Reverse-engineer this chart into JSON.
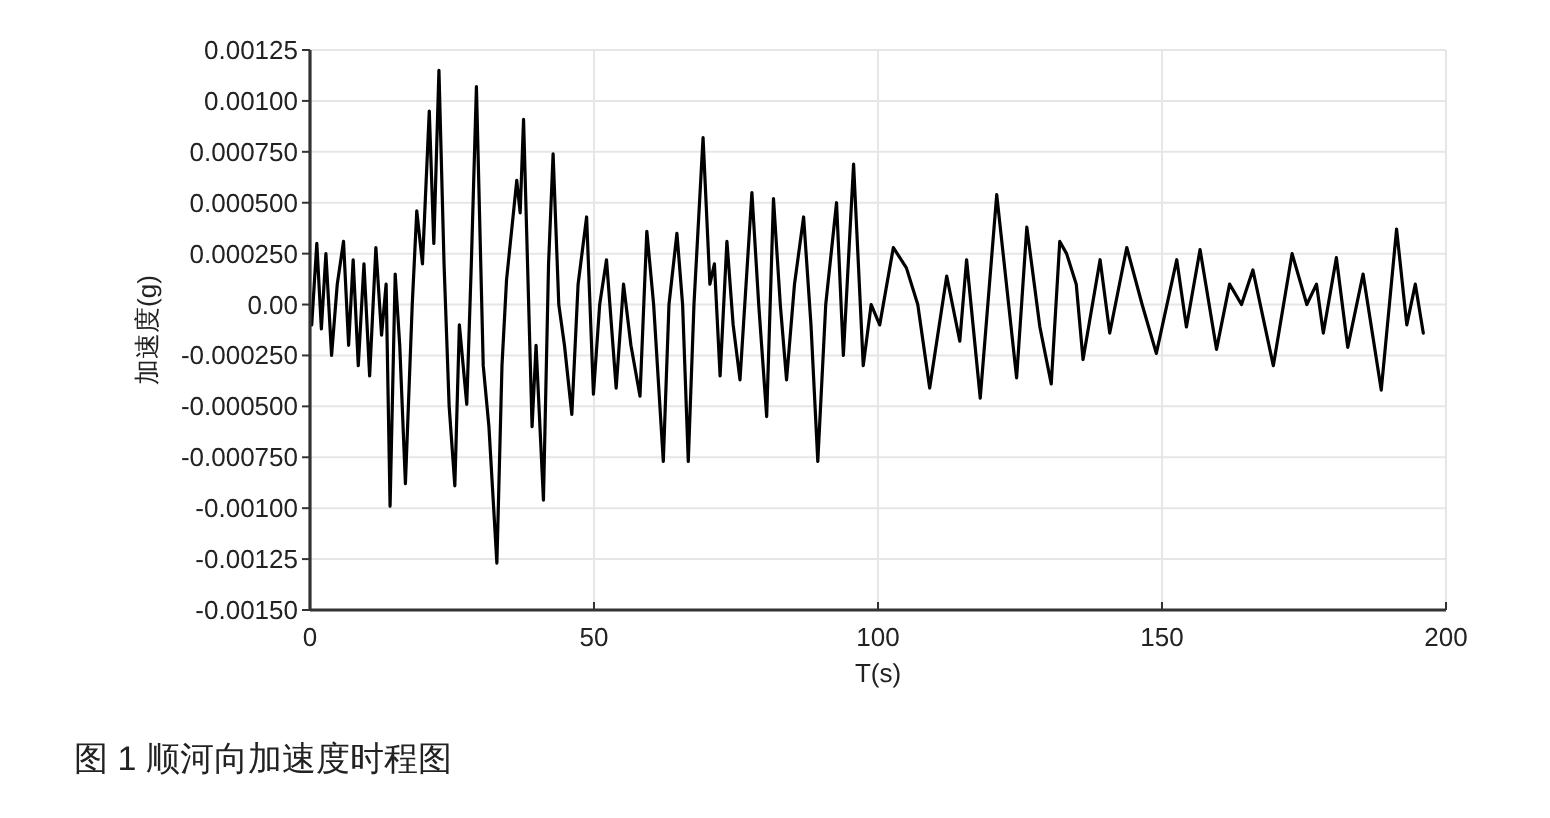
{
  "chart_data": {
    "type": "line",
    "xlabel": "T(s)",
    "ylabel": "加速度(g)",
    "annotations": [
      "图 1 顺河向加速度时程图"
    ],
    "x": [
      0.3,
      1.2,
      2.0,
      2.8,
      3.8,
      4.8,
      5.9,
      6.8,
      7.6,
      8.5,
      9.5,
      10.5,
      11.6,
      12.6,
      13.4,
      14.1,
      15.0,
      15.8,
      16.8,
      18.0,
      18.8,
      19.8,
      21.0,
      21.8,
      22.7,
      23.6,
      24.5,
      25.5,
      26.3,
      27.6,
      28.4,
      29.3,
      30.5,
      31.5,
      32.9,
      33.8,
      34.6,
      36.4,
      37.0,
      37.6,
      38.3,
      39.1,
      39.8,
      41.1,
      42.0,
      42.8,
      43.8,
      44.8,
      46.1,
      47.2,
      48.7,
      49.9,
      51.0,
      52.2,
      53.9,
      55.2,
      56.5,
      58.1,
      59.3,
      60.5,
      62.2,
      63.2,
      64.6,
      65.6,
      66.6,
      67.6,
      69.2,
      70.4,
      71.2,
      72.2,
      73.4,
      74.5,
      75.7,
      77.8,
      79.0,
      80.4,
      81.6,
      82.8,
      83.9,
      85.3,
      86.9,
      88.2,
      89.4,
      90.8,
      92.7,
      93.9,
      95.7,
      97.4,
      98.8,
      100.3,
      102.7,
      105.0,
      107.0,
      109.1,
      112.1,
      114.4,
      115.6,
      118.0,
      120.9,
      124.4,
      126.2,
      128.5,
      130.5,
      132.0,
      133.2,
      134.9,
      136.1,
      139.1,
      140.8,
      143.8,
      146.5,
      149.0,
      152.6,
      154.3,
      156.7,
      159.6,
      161.9,
      164.0,
      166.0,
      169.6,
      172.9,
      175.5,
      177.2,
      178.4,
      180.7,
      182.7,
      185.4,
      188.6,
      191.3,
      193.1,
      194.6,
      196.0
    ],
    "series": [
      {
        "color": "#000000",
        "values": [
          -0.0001,
          0.0003,
          -0.00012,
          0.00025,
          -0.00025,
          0.0001,
          0.00031,
          -0.0002,
          0.00022,
          -0.0003,
          0.0002,
          -0.00035,
          0.00028,
          -0.00015,
          0.0001,
          -0.00099,
          0.00015,
          -0.0002,
          -0.00088,
          0.0,
          0.00046,
          0.0002,
          0.00095,
          0.0003,
          0.00115,
          0.0002,
          -0.0005,
          -0.00089,
          -0.0001,
          -0.00049,
          0.0002,
          0.00107,
          -0.0003,
          -0.0006,
          -0.00127,
          -0.0003,
          0.00012,
          0.00061,
          0.00045,
          0.00091,
          0.0002,
          -0.0006,
          -0.0002,
          -0.00096,
          0.0002,
          0.00074,
          0.0,
          -0.0002,
          -0.00054,
          0.0001,
          0.00043,
          -0.00044,
          0.0,
          0.00022,
          -0.00041,
          0.0001,
          -0.0002,
          -0.00045,
          0.00036,
          0.0,
          -0.00077,
          0.0,
          0.00035,
          0.0,
          -0.00077,
          0.0,
          0.00082,
          0.0001,
          0.0002,
          -0.00035,
          0.00031,
          -0.0001,
          -0.00037,
          0.00055,
          0.0,
          -0.00055,
          0.00052,
          0.0,
          -0.00037,
          0.0001,
          0.00043,
          -0.0001,
          -0.00077,
          0.0,
          0.0005,
          -0.00025,
          0.00069,
          -0.0003,
          0.0,
          -0.0001,
          0.00028,
          0.00018,
          0.0,
          -0.00041,
          0.00014,
          -0.00018,
          0.00022,
          -0.00046,
          0.00054,
          -0.00036,
          0.00038,
          -0.00011,
          -0.00039,
          0.00031,
          0.00025,
          0.0001,
          -0.00027,
          0.00022,
          -0.00014,
          0.00028,
          0.0,
          -0.00024,
          0.00022,
          -0.00011,
          0.00027,
          -0.00022,
          0.0001,
          0.0,
          0.00017,
          -0.0003,
          0.00025,
          0.0,
          0.0001,
          -0.00014,
          0.00023,
          -0.00021,
          0.00015,
          -0.00042,
          0.00037,
          -0.0001,
          0.0001,
          -0.00014
        ]
      }
    ],
    "xlim": [
      0,
      200
    ],
    "ylim": [
      -0.0015,
      0.00125
    ],
    "xticks": [
      0,
      50,
      100,
      150,
      200
    ],
    "yticks": [
      {
        "value": 0.00125,
        "label": "0.00125"
      },
      {
        "value": 0.001,
        "label": "0.00100"
      },
      {
        "value": 0.00075,
        "label": "0.000750"
      },
      {
        "value": 0.0005,
        "label": "0.000500"
      },
      {
        "value": 0.00025,
        "label": "0.000250"
      },
      {
        "value": 0,
        "label": "0.00"
      },
      {
        "value": -0.00025,
        "label": "-0.000250"
      },
      {
        "value": -0.0005,
        "label": "-0.000500"
      },
      {
        "value": -0.00075,
        "label": "-0.000750"
      },
      {
        "value": -0.001,
        "label": "-0.00100"
      },
      {
        "value": -0.00125,
        "label": "-0.00125"
      },
      {
        "value": -0.0015,
        "label": "-0.00150"
      }
    ],
    "grid": true,
    "line_style": "solid"
  }
}
